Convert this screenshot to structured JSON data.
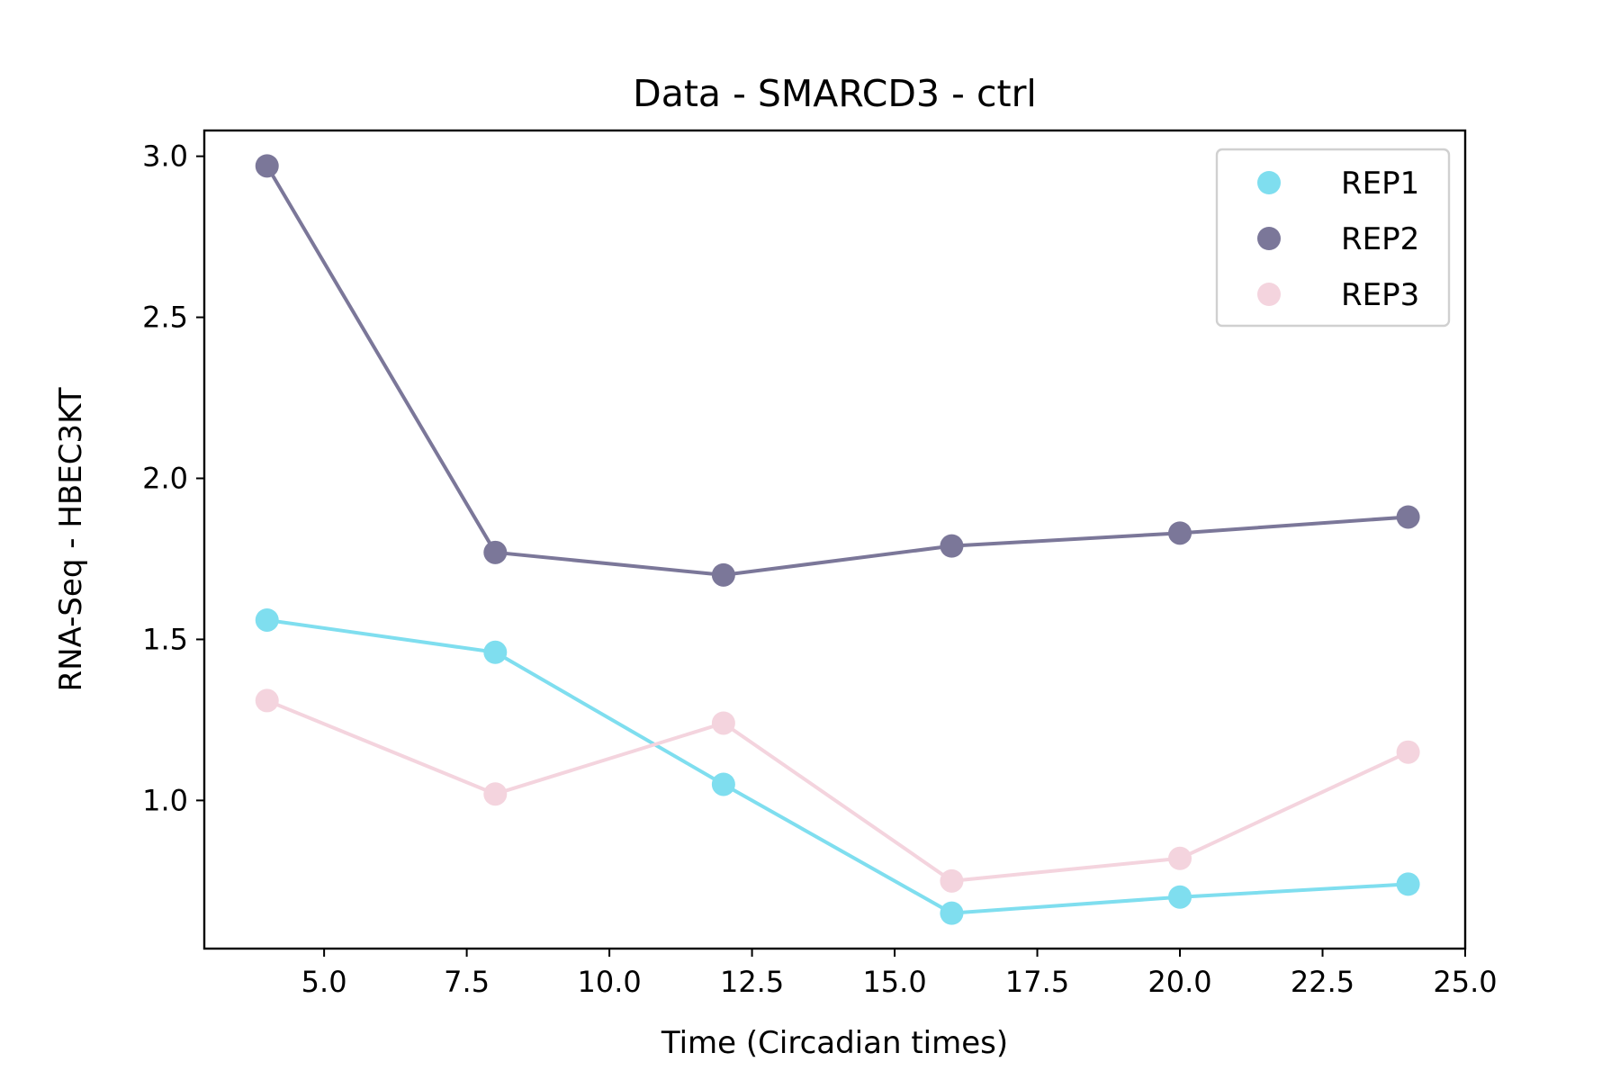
{
  "chart_data": {
    "type": "line",
    "title": "Data - SMARCD3 - ctrl",
    "xlabel": "Time (Circadian times)",
    "ylabel": "RNA-Seq - HBEC3KT",
    "x": [
      4,
      8,
      12,
      16,
      20,
      24
    ],
    "xlim": [
      2.9,
      25.0
    ],
    "ylim": [
      0.54,
      3.08
    ],
    "xticks": [
      5.0,
      7.5,
      10.0,
      12.5,
      15.0,
      17.5,
      20.0,
      22.5,
      25.0
    ],
    "xtick_labels": [
      "5.0",
      "7.5",
      "10.0",
      "12.5",
      "15.0",
      "17.5",
      "20.0",
      "22.5",
      "25.0"
    ],
    "yticks": [
      1.0,
      1.5,
      2.0,
      2.5,
      3.0
    ],
    "ytick_labels": [
      "1.0",
      "1.5",
      "2.0",
      "2.5",
      "3.0"
    ],
    "grid": false,
    "legend_position": "top-right",
    "series": [
      {
        "name": "REP1",
        "color": "#7fdeef",
        "values": [
          1.56,
          1.46,
          1.05,
          0.65,
          0.7,
          0.74
        ]
      },
      {
        "name": "REP2",
        "color": "#7b7799",
        "values": [
          2.97,
          1.77,
          1.7,
          1.79,
          1.83,
          1.88
        ]
      },
      {
        "name": "REP3",
        "color": "#f4d4de",
        "values": [
          1.31,
          1.02,
          1.24,
          0.75,
          0.82,
          1.15
        ]
      }
    ]
  }
}
